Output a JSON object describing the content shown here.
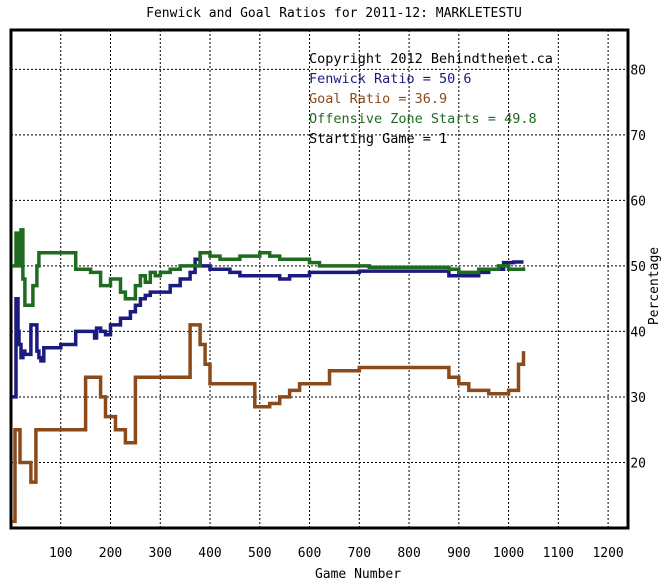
{
  "chart_data": {
    "type": "line",
    "title": "Fenwick and Goal Ratios for 2011-12: MARKLETESTU",
    "xlabel": "Game Number",
    "ylabel": "Percentage",
    "xlim": [
      0,
      1240
    ],
    "ylim": [
      10,
      86
    ],
    "x_ticks": [
      "100",
      "200",
      "300",
      "400",
      "500",
      "600",
      "700",
      "800",
      "900",
      "1000",
      "1100",
      "1200"
    ],
    "y_ticks": [
      "20",
      "30",
      "40",
      "50",
      "60",
      "70",
      "80"
    ],
    "grid": true,
    "annotations": [
      {
        "text": "Copyright 2012 Behindthenet.ca",
        "color": "#000000"
      },
      {
        "text": "Fenwick Ratio = 50.6",
        "color": "#1a1a80"
      },
      {
        "text": "Goal Ratio = 36.9",
        "color": "#8b4a1a"
      },
      {
        "text": "Offensive Zone Starts = 49.8",
        "color": "#1f6b1f"
      },
      {
        "text": "Starting Game = 1",
        "color": "#000000"
      }
    ],
    "series": [
      {
        "name": "Fenwick Ratio",
        "color": "#1a1a80",
        "x": [
          2,
          6,
          10,
          14,
          16,
          20,
          24,
          28,
          40,
          52,
          56,
          60,
          66,
          70,
          80,
          90,
          100,
          120,
          130,
          150,
          168,
          172,
          180,
          190,
          200,
          208,
          220,
          240,
          250,
          260,
          270,
          280,
          300,
          320,
          340,
          360,
          370,
          380,
          400,
          420,
          440,
          460,
          500,
          540,
          560,
          580,
          600,
          640,
          700,
          800,
          860,
          880,
          900,
          920,
          940,
          960,
          980,
          990,
          1000,
          1010,
          1030
        ],
        "y": [
          30,
          30,
          45,
          40,
          38,
          36,
          37,
          36.5,
          41,
          37,
          36,
          35.5,
          37.5,
          37.5,
          37.5,
          37.5,
          38,
          38,
          40,
          40,
          39,
          40.5,
          40,
          39.5,
          41,
          41,
          42,
          43,
          44,
          45,
          45.5,
          46,
          46,
          47,
          48,
          49,
          51,
          50,
          49.5,
          49.5,
          49,
          48.5,
          48.5,
          48,
          48.5,
          48.5,
          49,
          49,
          49.2,
          49.2,
          49.2,
          48.5,
          48.5,
          48.5,
          49,
          49.5,
          49.5,
          50.5,
          50.5,
          50.6,
          50.6
        ]
      },
      {
        "name": "Goal Ratio",
        "color": "#8b4a1a",
        "x": [
          2,
          6,
          8,
          14,
          18,
          20,
          30,
          40,
          46,
          50,
          60,
          100,
          120,
          150,
          160,
          170,
          180,
          190,
          200,
          210,
          220,
          230,
          240,
          250,
          260,
          300,
          340,
          360,
          370,
          380,
          390,
          400,
          420,
          440,
          480,
          490,
          500,
          520,
          540,
          560,
          580,
          600,
          640,
          700,
          800,
          840,
          860,
          880,
          900,
          920,
          940,
          960,
          980,
          1000,
          1020,
          1030
        ],
        "y": [
          11,
          11,
          25,
          25,
          20,
          20,
          20,
          17,
          17,
          25,
          25,
          25,
          25,
          33,
          33,
          33,
          30,
          27,
          27,
          25,
          25,
          23,
          23,
          33,
          33,
          33,
          33,
          41,
          41,
          38,
          35,
          32,
          32,
          32,
          32,
          28.5,
          28.5,
          29,
          30,
          31,
          32,
          32,
          34,
          34.5,
          34.5,
          34.5,
          34.5,
          33,
          32,
          31,
          31,
          30.5,
          30.5,
          31,
          35,
          37
        ]
      },
      {
        "name": "Offensive Zone Starts",
        "color": "#1f6b1f",
        "x": [
          2,
          6,
          10,
          14,
          16,
          20,
          24,
          28,
          36,
          44,
          52,
          56,
          70,
          80,
          90,
          100,
          110,
          130,
          160,
          180,
          200,
          220,
          230,
          240,
          250,
          260,
          270,
          280,
          290,
          300,
          320,
          340,
          360,
          380,
          400,
          420,
          440,
          460,
          480,
          500,
          520,
          540,
          560,
          580,
          600,
          620,
          660,
          720,
          800,
          860,
          880,
          900,
          920,
          940,
          960,
          980,
          1000,
          1020,
          1030
        ],
        "y": [
          50,
          50,
          55,
          50,
          50,
          55.5,
          48,
          44,
          44,
          47,
          50,
          52,
          52,
          52,
          52,
          52,
          52,
          49.5,
          49,
          47,
          48,
          46,
          45,
          45,
          47,
          48.5,
          47.5,
          49,
          48.5,
          49,
          49.5,
          50,
          50,
          52,
          51.5,
          51,
          51,
          51.5,
          51.5,
          52,
          51.5,
          51,
          51,
          51,
          50.5,
          50,
          50,
          49.8,
          49.8,
          49.8,
          49.5,
          49,
          49,
          49.5,
          49.5,
          50,
          49.5,
          49.5,
          49.8
        ]
      }
    ]
  }
}
